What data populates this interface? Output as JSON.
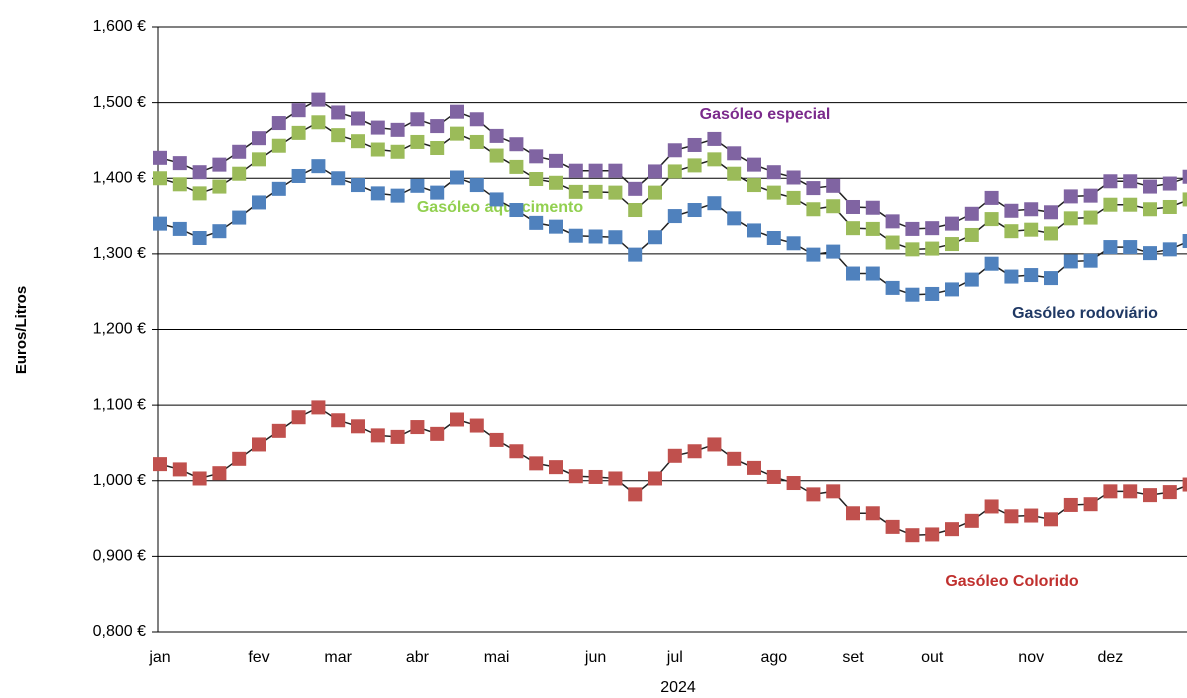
{
  "chart_data": {
    "type": "line",
    "x_label": "2024",
    "y_label": "Euros/Litros",
    "categories": [
      "jan",
      null,
      null,
      null,
      null,
      "fev",
      null,
      null,
      null,
      "mar",
      null,
      null,
      null,
      "abr",
      null,
      null,
      null,
      "mai",
      null,
      null,
      null,
      null,
      "jun",
      null,
      null,
      null,
      "jul",
      null,
      null,
      null,
      null,
      "ago",
      null,
      null,
      null,
      "set",
      null,
      null,
      null,
      "out",
      null,
      null,
      null,
      null,
      "nov",
      null,
      null,
      null,
      "dez",
      null,
      null,
      null,
      null
    ],
    "ylim": [
      0.8,
      1.6
    ],
    "yticks": [
      {
        "value": 0.8,
        "label": "0,800 €"
      },
      {
        "value": 0.9,
        "label": "0,900 €"
      },
      {
        "value": 1.0,
        "label": "1,000 €"
      },
      {
        "value": 1.1,
        "label": "1,100 €"
      },
      {
        "value": 1.2,
        "label": "1,200 €"
      },
      {
        "value": 1.3,
        "label": "1,300 €"
      },
      {
        "value": 1.4,
        "label": "1,400 €"
      },
      {
        "value": 1.5,
        "label": "1,500 €"
      },
      {
        "value": 1.6,
        "label": "1,600 €"
      }
    ],
    "grid": true,
    "series": [
      {
        "name": "Gasóleo especial",
        "color": "#8064a2",
        "label_color": "#7b2a8c",
        "values": [
          1.427,
          1.42,
          1.408,
          1.418,
          1.435,
          1.453,
          1.473,
          1.49,
          1.504,
          1.487,
          1.479,
          1.467,
          1.464,
          1.478,
          1.469,
          1.488,
          1.478,
          1.456,
          1.445,
          1.429,
          1.423,
          1.41,
          1.41,
          1.41,
          1.386,
          1.409,
          1.437,
          1.444,
          1.452,
          1.433,
          1.418,
          1.408,
          1.401,
          1.387,
          1.39,
          1.362,
          1.361,
          1.343,
          1.333,
          1.334,
          1.34,
          1.353,
          1.374,
          1.357,
          1.359,
          1.355,
          1.376,
          1.377,
          1.396,
          1.396,
          1.389,
          1.393,
          1.402
        ]
      },
      {
        "name": "Gasóleo aquecimento",
        "color": "#9bbb59",
        "label_color": "#92d050",
        "values": [
          1.4,
          1.392,
          1.38,
          1.389,
          1.406,
          1.425,
          1.443,
          1.46,
          1.474,
          1.457,
          1.449,
          1.438,
          1.435,
          1.448,
          1.44,
          1.459,
          1.448,
          1.43,
          1.415,
          1.399,
          1.394,
          1.382,
          1.382,
          1.381,
          1.358,
          1.381,
          1.409,
          1.417,
          1.425,
          1.406,
          1.391,
          1.381,
          1.374,
          1.359,
          1.363,
          1.334,
          1.333,
          1.315,
          1.306,
          1.307,
          1.313,
          1.325,
          1.346,
          1.33,
          1.332,
          1.327,
          1.347,
          1.348,
          1.365,
          1.365,
          1.359,
          1.362,
          1.372
        ]
      },
      {
        "name": "Gasóleo rodoviário",
        "color": "#4f81bd",
        "label_color": "#1f3864",
        "values": [
          1.34,
          1.333,
          1.321,
          1.33,
          1.348,
          1.368,
          1.386,
          1.403,
          1.416,
          1.4,
          1.391,
          1.38,
          1.377,
          1.39,
          1.381,
          1.401,
          1.391,
          1.372,
          1.358,
          1.341,
          1.336,
          1.324,
          1.323,
          1.322,
          1.299,
          1.322,
          1.35,
          1.358,
          1.367,
          1.347,
          1.331,
          1.321,
          1.314,
          1.299,
          1.303,
          1.274,
          1.274,
          1.255,
          1.246,
          1.247,
          1.253,
          1.266,
          1.287,
          1.27,
          1.272,
          1.268,
          1.29,
          1.291,
          1.309,
          1.309,
          1.301,
          1.306,
          1.317
        ]
      },
      {
        "name": "Gasóleo Colorido",
        "color": "#c0504d",
        "label_color": "#c0302e",
        "values": [
          1.022,
          1.015,
          1.003,
          1.01,
          1.029,
          1.048,
          1.066,
          1.084,
          1.097,
          1.08,
          1.072,
          1.06,
          1.058,
          1.071,
          1.062,
          1.081,
          1.073,
          1.054,
          1.039,
          1.023,
          1.018,
          1.006,
          1.005,
          1.003,
          0.982,
          1.003,
          1.033,
          1.039,
          1.048,
          1.029,
          1.017,
          1.005,
          0.997,
          0.982,
          0.986,
          0.957,
          0.957,
          0.939,
          0.928,
          0.929,
          0.936,
          0.947,
          0.966,
          0.953,
          0.954,
          0.949,
          0.968,
          0.969,
          0.986,
          0.986,
          0.981,
          0.985,
          0.995
        ]
      }
    ]
  }
}
